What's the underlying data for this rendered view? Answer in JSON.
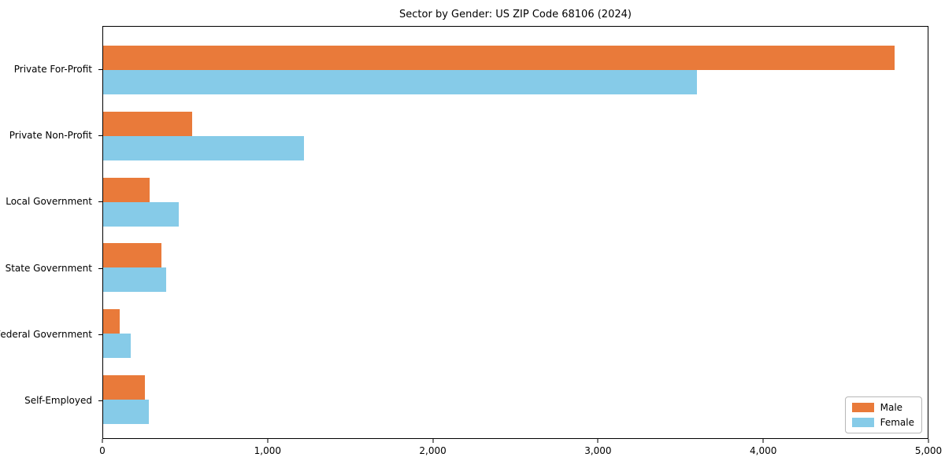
{
  "title": "Sector by Gender: US ZIP Code 68106 (2024)",
  "colors": {
    "male": "#E97A3A",
    "female": "#86CBE8",
    "axis": "#000000",
    "background": "#ffffff",
    "legend_border": "#b7b7b7"
  },
  "legend": {
    "items": [
      {
        "label": "Male",
        "color": "#E97A3A"
      },
      {
        "label": "Female",
        "color": "#86CBE8"
      }
    ]
  },
  "chart_data": {
    "type": "bar",
    "orientation": "horizontal",
    "title": "Sector by Gender: US ZIP Code 68106 (2024)",
    "categories": [
      "Private For-Profit",
      "Private Non-Profit",
      "Local Government",
      "State Government",
      "Federal Government",
      "Self-Employed"
    ],
    "series": [
      {
        "name": "Male",
        "color": "#E97A3A",
        "values": [
          4800,
          540,
          280,
          355,
          100,
          255
        ]
      },
      {
        "name": "Female",
        "color": "#86CBE8",
        "values": [
          3600,
          1220,
          460,
          380,
          165,
          275
        ]
      }
    ],
    "xlabel": "",
    "ylabel": "",
    "xlim": [
      0,
      5000
    ],
    "xticks": [
      0,
      1000,
      2000,
      3000,
      4000,
      5000
    ],
    "xticklabels": [
      "0",
      "1,000",
      "2,000",
      "3,000",
      "4,000",
      "5,000"
    ],
    "grid": false,
    "legend_position": "lower right"
  }
}
